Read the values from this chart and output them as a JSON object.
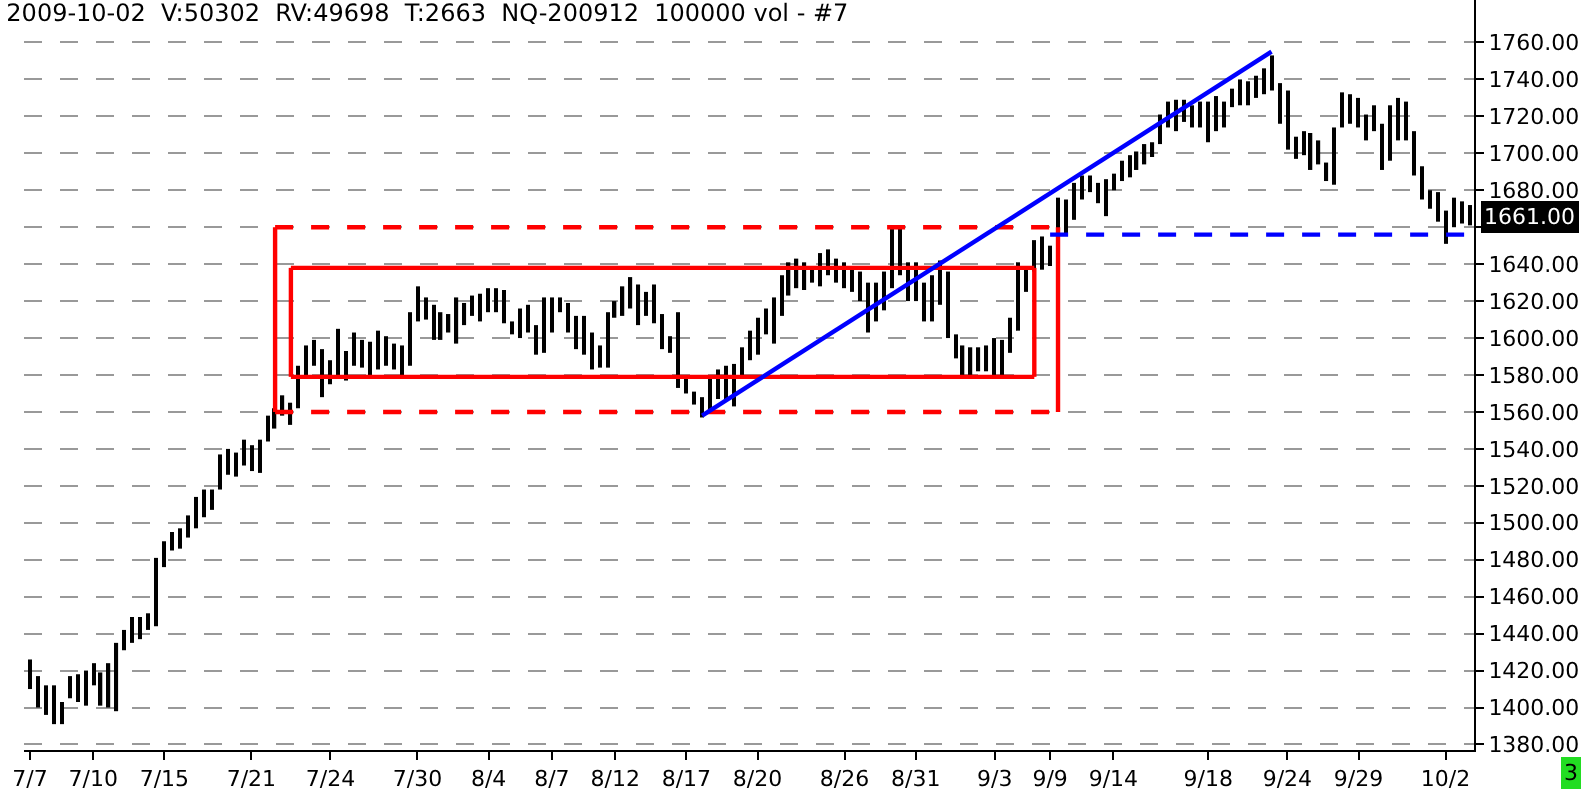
{
  "chart_data": {
    "type": "bar",
    "title": "2009-10-02  V:50302  RV:49698  T:2663  NQ-200912  100000 vol - #7",
    "categories": [
      "7/7",
      null,
      null,
      null,
      null,
      null,
      null,
      null,
      "7/10",
      null,
      null,
      null,
      null,
      null,
      null,
      null,
      null,
      "7/15",
      null,
      null,
      null,
      null,
      null,
      null,
      null,
      null,
      null,
      null,
      "7/21",
      null,
      null,
      null,
      null,
      null,
      null,
      null,
      null,
      null,
      "7/24",
      null,
      null,
      null,
      null,
      null,
      null,
      null,
      null,
      null,
      null,
      "7/30",
      null,
      null,
      null,
      null,
      null,
      null,
      null,
      null,
      "8/4",
      null,
      null,
      null,
      null,
      null,
      null,
      null,
      "8/7",
      null,
      null,
      null,
      null,
      null,
      null,
      null,
      "8/12",
      null,
      null,
      null,
      null,
      null,
      null,
      null,
      null,
      "8/17",
      null,
      null,
      null,
      null,
      null,
      null,
      null,
      null,
      "8/20",
      null,
      null,
      null,
      null,
      null,
      null,
      null,
      null,
      null,
      null,
      "8/26",
      null,
      null,
      null,
      null,
      null,
      null,
      null,
      null,
      "8/31",
      null,
      null,
      null,
      null,
      null,
      null,
      null,
      null,
      null,
      "9/3",
      null,
      null,
      null,
      null,
      null,
      null,
      "9/9",
      null,
      null,
      null,
      null,
      null,
      null,
      null,
      "9/14",
      null,
      null,
      null,
      null,
      null,
      null,
      null,
      null,
      null,
      null,
      null,
      "9/18",
      null,
      null,
      null,
      null,
      null,
      null,
      null,
      null,
      null,
      "9/24",
      null,
      null,
      null,
      null,
      null,
      null,
      null,
      null,
      "9/29",
      null,
      null,
      null,
      null,
      null,
      null,
      null,
      null,
      null,
      null,
      "10/2",
      null,
      null,
      null
    ],
    "ylim": [
      1377,
      1783
    ],
    "yticks": [
      {
        "value": 1380,
        "label": "1380.00"
      },
      {
        "value": 1400,
        "label": "1400.00"
      },
      {
        "value": 1420,
        "label": "1420.00"
      },
      {
        "value": 1440,
        "label": "1440.00"
      },
      {
        "value": 1460,
        "label": "1460.00"
      },
      {
        "value": 1480,
        "label": "1480.00"
      },
      {
        "value": 1500,
        "label": "1500.00"
      },
      {
        "value": 1520,
        "label": "1520.00"
      },
      {
        "value": 1540,
        "label": "1540.00"
      },
      {
        "value": 1560,
        "label": "1560.00"
      },
      {
        "value": 1580,
        "label": "1580.00"
      },
      {
        "value": 1600,
        "label": "1600.00"
      },
      {
        "value": 1620,
        "label": "1620.00"
      },
      {
        "value": 1640,
        "label": "1640.00"
      },
      {
        "value": 1660,
        "label": null
      },
      {
        "value": 1680,
        "label": "1680.00"
      },
      {
        "value": 1700,
        "label": "1700.00"
      },
      {
        "value": 1720,
        "label": "1720.00"
      },
      {
        "value": 1740,
        "label": "1740.00"
      },
      {
        "value": 1760,
        "label": "1760.00"
      }
    ],
    "grid": "y",
    "annotations": [
      "1661.00",
      "3"
    ],
    "series": [
      {
        "color": "#000000",
        "base": [
          1410,
          1400,
          1396,
          1391,
          1391,
          1405,
          1403,
          1401,
          1412,
          1401,
          1400,
          1398,
          1431,
          1435,
          1437,
          1442,
          1444,
          1476,
          1485,
          1486,
          1492,
          1497,
          1503,
          1507,
          1518,
          1526,
          1525,
          1531,
          1528,
          1527,
          1544,
          1551,
          1558,
          1553,
          1562,
          1580,
          1585,
          1568,
          1575,
          1578,
          1577,
          1585,
          1584,
          1580,
          1583,
          1585,
          1583,
          1580,
          1585,
          1609,
          1610,
          1599,
          1599,
          1603,
          1597,
          1607,
          1612,
          1609,
          1614,
          1614,
          1608,
          1602,
          1600,
          1603,
          1591,
          1592,
          1603,
          1614,
          1603,
          1594,
          1591,
          1583,
          1584,
          1584,
          1611,
          1612,
          1616,
          1607,
          1612,
          1608,
          1594,
          1592,
          1573,
          1570,
          1564,
          1557,
          1560,
          1567,
          1567,
          1563,
          1580,
          1588,
          1591,
          1602,
          1597,
          1612,
          1623,
          1627,
          1626,
          1630,
          1628,
          1634,
          1630,
          1627,
          1625,
          1620,
          1603,
          1609,
          1615,
          1627,
          1634,
          1620,
          1620,
          1609,
          1609,
          1618,
          1600,
          1589,
          1580,
          1578,
          1582,
          1582,
          1580,
          1578,
          1592,
          1604,
          1625,
          1636,
          1637,
          1639,
          1656,
          1656,
          1664,
          1675,
          1679,
          1673,
          1666,
          1680,
          1685,
          1687,
          1691,
          1694,
          1698,
          1705,
          1714,
          1712,
          1717,
          1714,
          1714,
          1706,
          1712,
          1714,
          1725,
          1726,
          1726,
          1730,
          1732,
          1734,
          1716,
          1702,
          1697,
          1699,
          1691,
          1694,
          1685,
          1683,
          1714,
          1716,
          1714,
          1707,
          1712,
          1691,
          1696,
          1707,
          1707,
          1688,
          1675,
          1670,
          1663,
          1651,
          1660,
          1662,
          1661
        ],
        "values": [
          16,
          17,
          16,
          21,
          12,
          12,
          15,
          19,
          12,
          18,
          24,
          37,
          11,
          14,
          12,
          9,
          37,
          14,
          10,
          11,
          12,
          17,
          15,
          11,
          19,
          14,
          13,
          14,
          14,
          18,
          14,
          11,
          11,
          12,
          23,
          16,
          14,
          26,
          13,
          27,
          16,
          18,
          15,
          18,
          21,
          16,
          14,
          16,
          29,
          19,
          12,
          19,
          15,
          10,
          25,
          12,
          11,
          15,
          13,
          13,
          18,
          7,
          16,
          15,
          16,
          30,
          19,
          8,
          16,
          18,
          21,
          20,
          12,
          30,
          9,
          16,
          17,
          22,
          13,
          21,
          19,
          9,
          41,
          10,
          7,
          11,
          18,
          16,
          18,
          23,
          15,
          16,
          20,
          14,
          25,
          22,
          18,
          16,
          15,
          9,
          18,
          14,
          13,
          14,
          14,
          16,
          27,
          21,
          21,
          32,
          27,
          21,
          21,
          21,
          25,
          24,
          36,
          13,
          16,
          17,
          13,
          14,
          20,
          21,
          19,
          37,
          12,
          17,
          18,
          11,
          20,
          19,
          20,
          13,
          9,
          11,
          20,
          9,
          11,
          12,
          10,
          11,
          8,
          16,
          14,
          17,
          12,
          12,
          14,
          22,
          19,
          14,
          10,
          14,
          13,
          12,
          14,
          19,
          22,
          32,
          12,
          13,
          20,
          13,
          10,
          31,
          19,
          16,
          16,
          14,
          14,
          25,
          30,
          23,
          21,
          24,
          18,
          10,
          16,
          18,
          16,
          12,
          11
        ]
      },
      {
        "type": "line",
        "color": "#ff0000",
        "line_style": "dashed",
        "values": [
          null,
          null,
          null,
          null,
          null,
          null,
          null,
          null,
          null,
          null,
          null,
          null,
          null,
          null,
          null,
          null,
          null,
          null,
          null,
          null,
          null,
          null,
          null,
          null,
          null,
          null,
          null,
          null,
          null,
          null,
          null,
          1660,
          null,
          null,
          null,
          null,
          null,
          null,
          null,
          null,
          null,
          null,
          null,
          null,
          null,
          null,
          null,
          null,
          null,
          null,
          null,
          null,
          null,
          null,
          null,
          null,
          null,
          null,
          null,
          null,
          null,
          null,
          null,
          null,
          null,
          null,
          null,
          null,
          null,
          null,
          null,
          null,
          null,
          null,
          null,
          null,
          null,
          null,
          null,
          null,
          null,
          null,
          null,
          null,
          null,
          null,
          null,
          null,
          null,
          null,
          null,
          null,
          null,
          null,
          null,
          null,
          null,
          null,
          null,
          null,
          null,
          null,
          null,
          null,
          null,
          null,
          null,
          null,
          null,
          null,
          null,
          null,
          null,
          null,
          null,
          null,
          null,
          null,
          null,
          null,
          null,
          null,
          null,
          null,
          null,
          null,
          null,
          null,
          null,
          null,
          1660,
          null,
          null,
          null,
          null,
          null,
          null,
          null,
          null,
          null,
          null,
          null,
          null,
          null,
          null,
          null,
          null,
          null,
          null,
          null,
          null,
          null,
          null,
          null,
          null,
          null,
          null,
          null,
          null,
          null,
          null,
          null,
          null,
          null,
          null,
          null,
          null,
          null,
          null,
          null,
          null,
          null,
          null,
          null,
          null,
          null,
          null,
          null,
          null,
          null,
          null,
          null,
          null
        ],
        "errors": [
          null,
          null,
          null,
          null,
          null,
          null,
          null,
          null,
          null,
          null,
          null,
          null,
          null,
          null,
          null,
          null,
          null,
          null,
          null,
          null,
          null,
          null,
          null,
          null,
          null,
          null,
          null,
          null,
          null,
          null,
          null,
          [
            1560,
            1660
          ],
          null,
          null,
          null,
          null,
          null,
          null,
          null,
          null,
          null,
          null,
          null,
          null,
          null,
          null,
          null,
          null,
          null,
          null,
          null,
          null,
          null,
          null,
          null,
          null,
          null,
          null,
          null,
          null,
          null,
          null,
          null,
          null,
          null,
          null,
          null,
          null,
          null,
          null,
          null,
          null,
          null,
          null,
          null,
          null,
          null,
          null,
          null,
          null,
          null,
          null,
          null,
          null,
          null,
          null,
          null,
          null,
          null,
          null,
          null,
          null,
          null,
          null,
          null,
          null,
          null,
          null,
          null,
          null,
          null,
          null,
          null,
          null,
          null,
          null,
          null,
          null,
          null,
          null,
          null,
          null,
          null,
          null,
          null,
          null,
          null,
          null,
          null,
          null,
          null,
          null,
          null,
          null,
          null,
          null,
          null,
          null,
          null,
          null,
          [
            1560,
            1660
          ],
          null,
          null,
          null,
          null,
          null,
          null,
          null,
          null,
          null,
          null,
          null,
          null,
          null,
          null,
          null,
          null,
          null,
          null,
          null,
          null,
          null,
          null,
          null,
          null,
          null,
          null,
          null,
          null,
          null,
          null,
          null,
          null,
          null,
          null,
          null,
          null,
          null,
          null,
          null,
          null,
          null,
          null,
          null,
          null,
          null,
          null,
          null,
          null,
          null,
          null,
          null,
          null
        ]
      },
      {
        "type": "line",
        "color": "#ff0000",
        "line_style": "dashed",
        "values": [
          null,
          null,
          null,
          null,
          null,
          null,
          null,
          null,
          null,
          null,
          null,
          null,
          null,
          null,
          null,
          null,
          null,
          null,
          null,
          null,
          null,
          null,
          null,
          null,
          null,
          null,
          null,
          null,
          null,
          null,
          null,
          1560,
          null,
          null,
          null,
          null,
          null,
          null,
          null,
          null,
          null,
          null,
          null,
          null,
          null,
          null,
          null,
          null,
          null,
          null,
          null,
          null,
          null,
          null,
          null,
          null,
          null,
          null,
          null,
          null,
          null,
          null,
          null,
          null,
          null,
          null,
          null,
          null,
          null,
          null,
          null,
          null,
          null,
          null,
          null,
          null,
          null,
          null,
          null,
          null,
          null,
          null,
          null,
          null,
          null,
          null,
          null,
          null,
          null,
          null,
          null,
          null,
          null,
          null,
          null,
          null,
          null,
          null,
          null,
          null,
          null,
          null,
          null,
          null,
          null,
          null,
          null,
          null,
          null,
          null,
          null,
          null,
          null,
          null,
          null,
          null,
          null,
          null,
          null,
          null,
          null,
          null,
          null,
          null,
          null,
          null,
          null,
          null,
          null,
          null,
          1560,
          null,
          null,
          null,
          null,
          null,
          null,
          null,
          null,
          null,
          null,
          null,
          null,
          null,
          null,
          null,
          null,
          null,
          null,
          null,
          null,
          null,
          null,
          null,
          null,
          null,
          null,
          null,
          null,
          null,
          null,
          null,
          null,
          null,
          null,
          null,
          null,
          null,
          null,
          null,
          null,
          null,
          null,
          null,
          null,
          null,
          null,
          null,
          null,
          null,
          null,
          null,
          null
        ]
      },
      {
        "type": "line",
        "color": "#ff0000",
        "line_style": "solid",
        "values": [
          null,
          null,
          null,
          null,
          null,
          null,
          null,
          null,
          null,
          null,
          null,
          null,
          null,
          null,
          null,
          null,
          null,
          null,
          null,
          null,
          null,
          null,
          null,
          null,
          null,
          null,
          null,
          null,
          null,
          null,
          null,
          null,
          null,
          1638,
          null,
          null,
          null,
          null,
          null,
          null,
          null,
          null,
          null,
          null,
          null,
          null,
          null,
          null,
          null,
          null,
          null,
          null,
          null,
          null,
          null,
          null,
          null,
          null,
          null,
          null,
          null,
          null,
          null,
          null,
          null,
          null,
          null,
          null,
          null,
          null,
          null,
          null,
          null,
          null,
          null,
          null,
          null,
          null,
          null,
          null,
          null,
          null,
          null,
          null,
          null,
          null,
          null,
          null,
          null,
          null,
          null,
          null,
          null,
          null,
          null,
          null,
          null,
          null,
          null,
          null,
          null,
          null,
          null,
          null,
          null,
          null,
          null,
          null,
          null,
          null,
          null,
          null,
          null,
          null,
          null,
          null,
          null,
          null,
          null,
          null,
          null,
          null,
          null,
          null,
          null,
          null,
          null,
          1638,
          null,
          null,
          null,
          null,
          null,
          null,
          null,
          null,
          null,
          null,
          null,
          null,
          null,
          null,
          null,
          null,
          null,
          null,
          null,
          null,
          null,
          null,
          null,
          null,
          null,
          null,
          null,
          null,
          null,
          null,
          null,
          null,
          null,
          null,
          null,
          null,
          null,
          null,
          null,
          null,
          null,
          null,
          null,
          null,
          null,
          null,
          null,
          null,
          null,
          null,
          null,
          null,
          null,
          null,
          null
        ],
        "errors": [
          null,
          null,
          null,
          null,
          null,
          null,
          null,
          null,
          null,
          null,
          null,
          null,
          null,
          null,
          null,
          null,
          null,
          null,
          null,
          null,
          null,
          null,
          null,
          null,
          null,
          null,
          null,
          null,
          null,
          null,
          null,
          null,
          null,
          [
            1579,
            1638
          ],
          null,
          null,
          null,
          null,
          null,
          null,
          null,
          null,
          null,
          null,
          null,
          null,
          null,
          null,
          null,
          null,
          null,
          null,
          null,
          null,
          null,
          null,
          null,
          null,
          null,
          null,
          null,
          null,
          null,
          null,
          null,
          null,
          null,
          null,
          null,
          null,
          null,
          null,
          null,
          null,
          null,
          null,
          null,
          null,
          null,
          null,
          null,
          null,
          null,
          null,
          null,
          null,
          null,
          null,
          null,
          null,
          null,
          null,
          null,
          null,
          null,
          null,
          null,
          null,
          null,
          null,
          null,
          null,
          null,
          null,
          null,
          null,
          null,
          null,
          null,
          null,
          null,
          null,
          null,
          null,
          null,
          null,
          null,
          null,
          null,
          null,
          null,
          null,
          null,
          null,
          null,
          null,
          null,
          [
            1579,
            1638
          ],
          null,
          null,
          null,
          null,
          null,
          null,
          null,
          null,
          null,
          null,
          null,
          null,
          null,
          null,
          null,
          null,
          null,
          null,
          null,
          null,
          null,
          null,
          null,
          null,
          null,
          null,
          null,
          null,
          null,
          null,
          null,
          null,
          null,
          null,
          null,
          null,
          null,
          null,
          null,
          null,
          null,
          null,
          null,
          null,
          null,
          null,
          null,
          null,
          null,
          null,
          null,
          null,
          null,
          null,
          null
        ]
      },
      {
        "type": "line",
        "color": "#ff0000",
        "line_style": "solid",
        "values": [
          null,
          null,
          null,
          null,
          null,
          null,
          null,
          null,
          null,
          null,
          null,
          null,
          null,
          null,
          null,
          null,
          null,
          null,
          null,
          null,
          null,
          null,
          null,
          null,
          null,
          null,
          null,
          null,
          null,
          null,
          null,
          null,
          null,
          1579,
          null,
          null,
          null,
          null,
          null,
          null,
          null,
          null,
          null,
          null,
          null,
          null,
          null,
          null,
          null,
          null,
          null,
          null,
          null,
          null,
          null,
          null,
          null,
          null,
          null,
          null,
          null,
          null,
          null,
          null,
          null,
          null,
          null,
          null,
          null,
          null,
          null,
          null,
          null,
          null,
          null,
          null,
          null,
          null,
          null,
          null,
          null,
          null,
          null,
          null,
          null,
          null,
          null,
          null,
          null,
          null,
          null,
          null,
          null,
          null,
          null,
          null,
          null,
          null,
          null,
          null,
          null,
          null,
          null,
          null,
          null,
          null,
          null,
          null,
          null,
          null,
          null,
          null,
          null,
          null,
          null,
          null,
          null,
          null,
          null,
          null,
          null,
          null,
          null,
          null,
          null,
          null,
          null,
          1579,
          null,
          null,
          null,
          null,
          null,
          null,
          null,
          null,
          null,
          null,
          null,
          null,
          null,
          null,
          null,
          null,
          null,
          null,
          null,
          null,
          null,
          null,
          null,
          null,
          null,
          null,
          null,
          null,
          null,
          null,
          null,
          null,
          null,
          null,
          null,
          null,
          null,
          null,
          null,
          null,
          null,
          null,
          null,
          null,
          null,
          null,
          null,
          null,
          null,
          null,
          null,
          null,
          null,
          null,
          null
        ]
      },
      {
        "type": "line",
        "color": "#0000ff",
        "line_style": "solid",
        "values": [
          null,
          null,
          null,
          null,
          null,
          null,
          null,
          null,
          null,
          null,
          null,
          null,
          null,
          null,
          null,
          null,
          null,
          null,
          null,
          null,
          null,
          null,
          null,
          null,
          null,
          null,
          null,
          null,
          null,
          null,
          null,
          null,
          null,
          null,
          null,
          null,
          null,
          null,
          null,
          null,
          null,
          null,
          null,
          null,
          null,
          null,
          null,
          null,
          null,
          null,
          null,
          null,
          null,
          null,
          null,
          null,
          null,
          null,
          null,
          null,
          null,
          null,
          null,
          null,
          null,
          null,
          null,
          null,
          null,
          null,
          null,
          null,
          null,
          null,
          null,
          null,
          null,
          null,
          null,
          null,
          null,
          null,
          null,
          null,
          null,
          1558,
          null,
          null,
          null,
          null,
          null,
          null,
          null,
          null,
          null,
          null,
          null,
          null,
          null,
          null,
          null,
          null,
          null,
          null,
          null,
          null,
          null,
          null,
          null,
          null,
          null,
          null,
          null,
          null,
          null,
          null,
          null,
          null,
          null,
          null,
          null,
          null,
          null,
          null,
          null,
          null,
          null,
          null,
          null,
          null,
          null,
          null,
          null,
          null,
          null,
          null,
          null,
          null,
          null,
          null,
          null,
          null,
          null,
          null,
          null,
          null,
          null,
          null,
          null,
          null,
          null,
          null,
          null,
          null,
          null,
          null,
          null,
          1755,
          null,
          null,
          null,
          null,
          null,
          null,
          null,
          null,
          null,
          null,
          null,
          null,
          null,
          null,
          null,
          null,
          null,
          null,
          null,
          null,
          null,
          null,
          null,
          null,
          null
        ]
      },
      {
        "type": "line",
        "color": "#0000ff",
        "line_style": "dashed",
        "values": [
          null,
          null,
          null,
          null,
          null,
          null,
          null,
          null,
          null,
          null,
          null,
          null,
          null,
          null,
          null,
          null,
          null,
          null,
          null,
          null,
          null,
          null,
          null,
          null,
          null,
          null,
          null,
          null,
          null,
          null,
          null,
          null,
          null,
          null,
          null,
          null,
          null,
          null,
          null,
          null,
          null,
          null,
          null,
          null,
          null,
          null,
          null,
          null,
          null,
          null,
          null,
          null,
          null,
          null,
          null,
          null,
          null,
          null,
          null,
          null,
          null,
          null,
          null,
          null,
          null,
          null,
          null,
          null,
          null,
          null,
          null,
          null,
          null,
          null,
          null,
          null,
          null,
          null,
          null,
          null,
          null,
          null,
          null,
          null,
          null,
          null,
          null,
          null,
          null,
          null,
          null,
          null,
          null,
          null,
          null,
          null,
          null,
          null,
          null,
          null,
          null,
          null,
          null,
          null,
          null,
          null,
          null,
          null,
          null,
          null,
          null,
          null,
          null,
          null,
          null,
          null,
          null,
          null,
          null,
          null,
          null,
          null,
          null,
          null,
          null,
          null,
          null,
          null,
          null,
          1656,
          null,
          null,
          null,
          null,
          null,
          null,
          null,
          null,
          null,
          null,
          null,
          null,
          null,
          null,
          null,
          null,
          null,
          null,
          null,
          null,
          null,
          null,
          null,
          null,
          null,
          null,
          null,
          null,
          null,
          null,
          null,
          null,
          null,
          null,
          null,
          null,
          null,
          null,
          null,
          null,
          null,
          null,
          null,
          null,
          null,
          null,
          null,
          null,
          null,
          null,
          null,
          null,
          1656
        ]
      }
    ]
  }
}
